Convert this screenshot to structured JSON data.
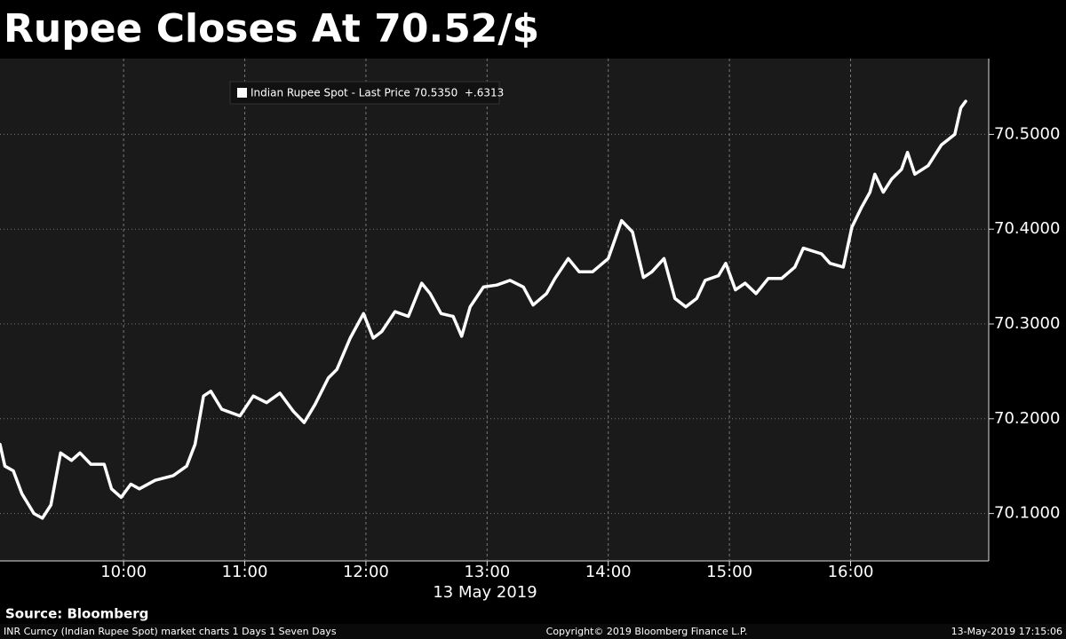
{
  "chart_data": {
    "type": "line",
    "title": "Rupee Closes At 70.52/$",
    "xlabel": "13 May 2019",
    "source": "Source: Bloomberg",
    "footer_left": "INR Curncy (Indian Rupee Spot) market charts 1 Days 1 Seven Days",
    "footer_center": "Copyright© 2019 Bloomberg Finance L.P.",
    "footer_right": "13-May-2019 17:15:06",
    "x": [
      8.98,
      9.02,
      9.09,
      9.16,
      9.26,
      9.33,
      9.4,
      9.48,
      9.57,
      9.64,
      9.73,
      9.84,
      9.9,
      9.98,
      10.06,
      10.13,
      10.26,
      10.41,
      10.52,
      10.59,
      10.66,
      10.72,
      10.81,
      10.96,
      11.07,
      11.18,
      11.29,
      11.4,
      11.49,
      11.58,
      11.69,
      11.76,
      11.87,
      11.98,
      12.06,
      12.13,
      12.24,
      12.35,
      12.46,
      12.53,
      12.62,
      12.72,
      12.79,
      12.86,
      12.97,
      13.08,
      13.19,
      13.3,
      13.38,
      13.49,
      13.56,
      13.67,
      13.76,
      13.87,
      14.0,
      14.11,
      14.2,
      14.29,
      14.36,
      14.46,
      14.55,
      14.64,
      14.73,
      14.8,
      14.91,
      14.97,
      15.05,
      15.13,
      15.22,
      15.32,
      15.43,
      15.54,
      15.61,
      15.76,
      15.83,
      15.94,
      16.01,
      16.09,
      16.16,
      16.2,
      16.27,
      16.34,
      16.42,
      16.47,
      16.53,
      16.64,
      16.75,
      16.86,
      16.91,
      16.95
    ],
    "series": [
      {
        "name": "Indian Rupee Spot - Last Price 70.5350  +.6313",
        "color": "#ffffff",
        "values": [
          70.173,
          70.15,
          70.145,
          70.121,
          70.1,
          70.095,
          70.109,
          70.164,
          70.156,
          70.164,
          70.152,
          70.152,
          70.126,
          70.117,
          70.131,
          70.126,
          70.135,
          70.14,
          70.15,
          70.173,
          70.224,
          70.229,
          70.21,
          70.203,
          70.224,
          70.217,
          70.227,
          70.208,
          70.196,
          70.215,
          70.243,
          70.252,
          70.285,
          70.311,
          70.285,
          70.292,
          70.313,
          70.308,
          70.343,
          70.332,
          70.311,
          70.308,
          70.287,
          70.318,
          70.339,
          70.341,
          70.346,
          70.339,
          70.32,
          70.332,
          70.348,
          70.369,
          70.355,
          70.355,
          70.369,
          70.409,
          70.397,
          70.349,
          70.355,
          70.369,
          70.327,
          70.318,
          70.327,
          70.346,
          70.351,
          70.364,
          70.336,
          70.343,
          70.332,
          70.348,
          70.348,
          70.36,
          70.38,
          70.374,
          70.364,
          70.36,
          70.402,
          70.423,
          70.439,
          70.458,
          70.439,
          70.453,
          70.463,
          70.481,
          70.458,
          70.467,
          70.489,
          70.5,
          70.528,
          70.535
        ]
      }
    ],
    "xlim": [
      8.98,
      17.14
    ],
    "ylim": [
      70.05,
      70.58
    ],
    "xticks": [
      {
        "value": 10,
        "label": "10:00"
      },
      {
        "value": 11,
        "label": "11:00"
      },
      {
        "value": 12,
        "label": "12:00"
      },
      {
        "value": 13,
        "label": "13:00"
      },
      {
        "value": 14,
        "label": "14:00"
      },
      {
        "value": 15,
        "label": "15:00"
      },
      {
        "value": 16,
        "label": "16:00"
      }
    ],
    "yticks": [
      {
        "value": 70.1,
        "label": "70.1000"
      },
      {
        "value": 70.2,
        "label": "70.2000"
      },
      {
        "value": 70.3,
        "label": "70.3000"
      },
      {
        "value": 70.4,
        "label": "70.4000"
      },
      {
        "value": 70.5,
        "label": "70.5000"
      }
    ],
    "grid": true,
    "legend": "top-left"
  }
}
